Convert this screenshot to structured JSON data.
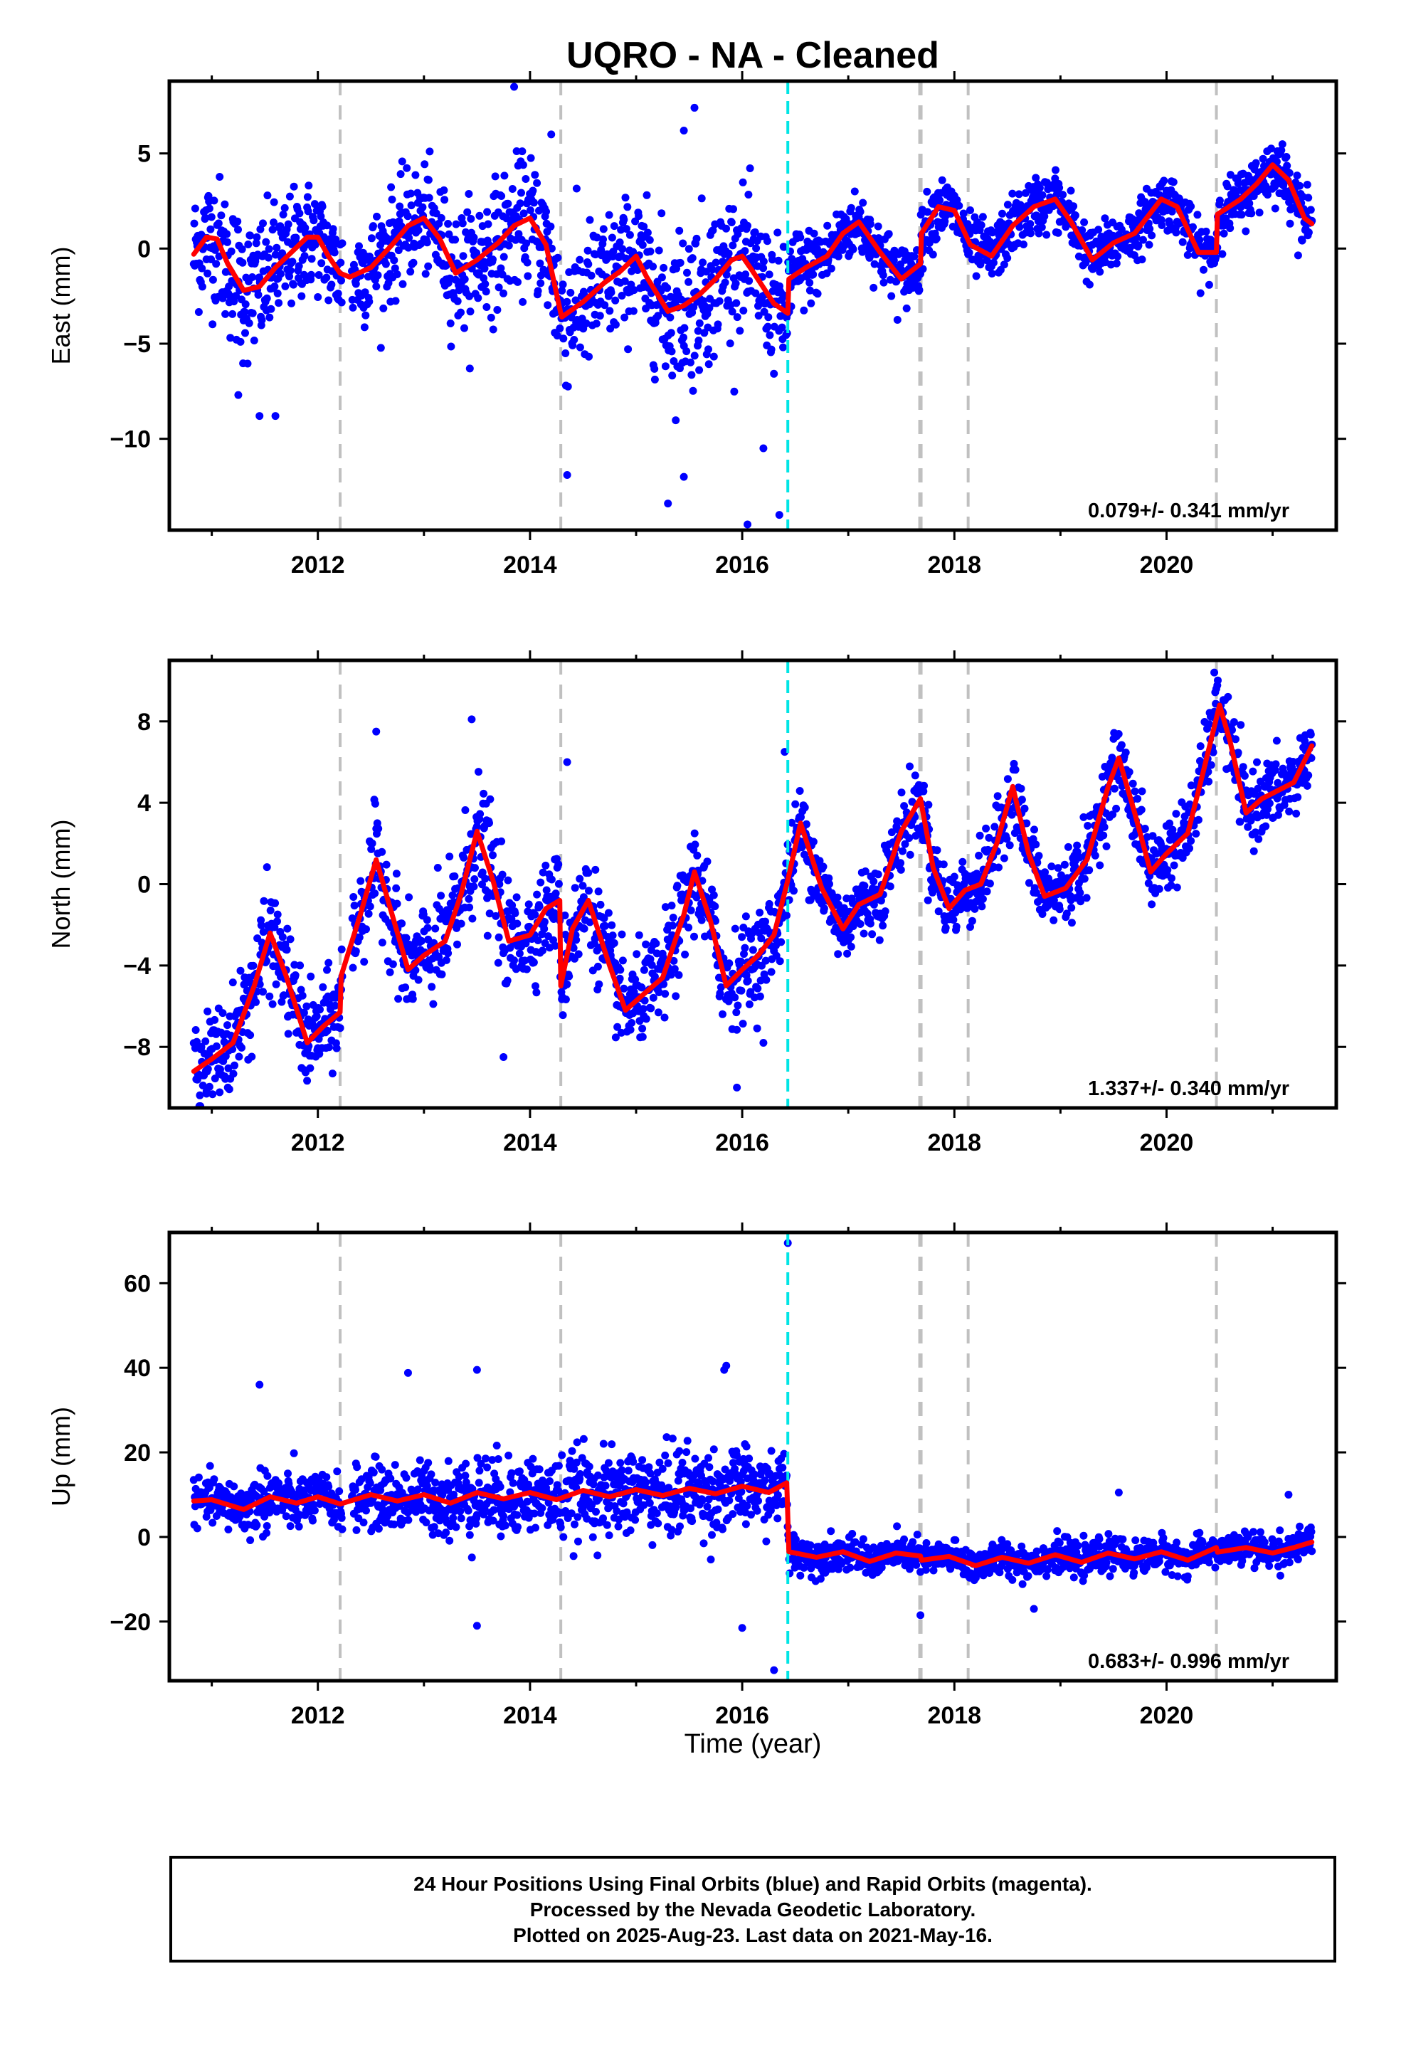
{
  "title": "UQRO  - NA - Cleaned",
  "colors": {
    "final_orbits": "#0000ff",
    "model": "#ff0000",
    "equipment_change": "#c0c0c0",
    "earthquake": "#00e5e5"
  },
  "x_axis": {
    "label": "Time (year)",
    "range": [
      2010.6,
      2021.6
    ],
    "ticks": [
      "2012",
      "2014",
      "2016",
      "2018",
      "2020"
    ]
  },
  "footer": {
    "line1": "24 Hour Positions Using Final Orbits (blue) and Rapid Orbits (magenta).",
    "line2": "Processed by the Nevada Geodetic Laboratory.",
    "line3": "Plotted on 2025-Aug-23. Last data on 2021-May-16."
  },
  "chart_data": [
    {
      "type": "scatter",
      "panel": "east",
      "ylabel": "East (mm)",
      "ylim": [
        -14.8,
        8.8
      ],
      "yticks": [
        5,
        0,
        -5,
        -10
      ],
      "ytick_labels": [
        "5",
        "0",
        "−5",
        "−10"
      ],
      "rate_label": "0.079+/- 0.341 mm/yr",
      "vlines_gray": [
        2012.21,
        2014.29,
        2017.68,
        2018.13,
        2020.47
      ],
      "vline_cyan": 2016.43,
      "data_start": 2010.83,
      "data_end": 2021.37,
      "model_curve": {
        "x": [
          2010.83,
          2010.95,
          2011.05,
          2011.15,
          2011.3,
          2011.45,
          2011.6,
          2011.75,
          2011.9,
          2012.0,
          2012.1,
          2012.21,
          2012.3,
          2012.5,
          2012.7,
          2012.85,
          2013.0,
          2013.15,
          2013.3,
          2013.5,
          2013.7,
          2013.85,
          2014.0,
          2014.15,
          2014.29,
          2014.3,
          2014.5,
          2014.7,
          2014.85,
          2015.0,
          2015.1,
          2015.3,
          2015.45,
          2015.6,
          2015.75,
          2015.9,
          2016.0,
          2016.1,
          2016.3,
          2016.43,
          2016.44,
          2016.6,
          2016.8,
          2016.95,
          2017.1,
          2017.3,
          2017.5,
          2017.68,
          2017.69,
          2017.85,
          2018.0,
          2018.15,
          2018.35,
          2018.55,
          2018.75,
          2018.95,
          2019.1,
          2019.3,
          2019.5,
          2019.7,
          2019.95,
          2020.1,
          2020.3,
          2020.47,
          2020.48,
          2020.7,
          2020.85,
          2021.0,
          2021.15,
          2021.3,
          2021.37
        ],
        "y": [
          -0.3,
          0.6,
          0.5,
          -0.8,
          -2.2,
          -2.0,
          -1.0,
          -0.2,
          0.6,
          0.6,
          -0.4,
          -1.3,
          -1.5,
          -1.0,
          0.2,
          1.2,
          1.6,
          0.5,
          -1.3,
          -0.6,
          0.3,
          1.2,
          1.6,
          0.2,
          -3.4,
          -3.6,
          -2.8,
          -1.8,
          -1.2,
          -0.4,
          -1.5,
          -3.3,
          -3.0,
          -2.4,
          -1.6,
          -0.6,
          -0.4,
          -1.2,
          -2.9,
          -3.4,
          -1.6,
          -1.0,
          -0.4,
          0.8,
          1.4,
          -0.2,
          -1.6,
          -0.8,
          0.8,
          2.2,
          2.0,
          0.2,
          -0.4,
          1.2,
          2.2,
          2.6,
          1.4,
          -0.6,
          0.3,
          0.8,
          2.6,
          2.2,
          -0.2,
          -0.2,
          1.8,
          2.6,
          3.4,
          4.4,
          3.6,
          1.6,
          1.3
        ]
      },
      "scatter_bands": {
        "x": [
          2010.9,
          2011.3,
          2011.6,
          2012.0,
          2012.5,
          2013.0,
          2013.5,
          2014.0,
          2014.5,
          2015.0,
          2015.5,
          2016.0,
          2016.4,
          2016.6,
          2017.0,
          2017.5,
          2018.0,
          2018.5,
          2019.0,
          2019.5,
          2020.0,
          2020.5,
          2021.0,
          2021.35
        ],
        "spread": [
          3.0,
          3.5,
          3.0,
          2.5,
          2.5,
          2.5,
          3.0,
          3.0,
          3.5,
          3.0,
          4.0,
          3.0,
          3.0,
          1.8,
          1.5,
          1.5,
          1.4,
          1.4,
          1.4,
          1.3,
          1.3,
          1.3,
          1.4,
          1.3
        ]
      },
      "outliers": [
        [
          2011.25,
          -7.7
        ],
        [
          2011.45,
          -8.8
        ],
        [
          2011.6,
          -8.8
        ],
        [
          2013.85,
          8.5
        ],
        [
          2014.35,
          -11.9
        ],
        [
          2015.3,
          -13.4
        ],
        [
          2015.45,
          -12.0
        ],
        [
          2015.55,
          7.4
        ],
        [
          2016.05,
          -14.5
        ],
        [
          2016.35,
          -14.0
        ],
        [
          2016.2,
          -10.5
        ],
        [
          2014.2,
          6.0
        ],
        [
          2015.45,
          6.2
        ]
      ]
    },
    {
      "type": "scatter",
      "panel": "north",
      "ylabel": "North (mm)",
      "ylim": [
        -11.0,
        11.0
      ],
      "yticks": [
        8,
        4,
        0,
        -4,
        -8
      ],
      "ytick_labels": [
        "8",
        "4",
        "0",
        "−4",
        "−8"
      ],
      "rate_label": "1.337+/- 0.340 mm/yr",
      "vlines_gray": [
        2012.21,
        2014.29,
        2017.68,
        2018.13,
        2020.47
      ],
      "vline_cyan": 2016.43,
      "data_start": 2010.83,
      "data_end": 2021.37,
      "model_curve": {
        "x": [
          2010.83,
          2011.0,
          2011.2,
          2011.4,
          2011.55,
          2011.7,
          2011.9,
          2012.05,
          2012.21,
          2012.22,
          2012.4,
          2012.55,
          2012.7,
          2012.85,
          2013.0,
          2013.2,
          2013.35,
          2013.5,
          2013.65,
          2013.8,
          2014.0,
          2014.15,
          2014.28,
          2014.29,
          2014.4,
          2014.55,
          2014.75,
          2014.9,
          2015.05,
          2015.25,
          2015.45,
          2015.55,
          2015.7,
          2015.85,
          2016.0,
          2016.15,
          2016.3,
          2016.43,
          2016.55,
          2016.75,
          2016.95,
          2017.1,
          2017.3,
          2017.5,
          2017.68,
          2017.8,
          2017.95,
          2018.1,
          2018.25,
          2018.4,
          2018.55,
          2018.7,
          2018.85,
          2019.05,
          2019.25,
          2019.45,
          2019.55,
          2019.7,
          2019.85,
          2020.0,
          2020.2,
          2020.35,
          2020.5,
          2020.6,
          2020.75,
          2020.9,
          2021.05,
          2021.2,
          2021.37
        ],
        "y": [
          -9.2,
          -8.6,
          -7.8,
          -5.0,
          -2.4,
          -4.5,
          -7.8,
          -7.0,
          -6.3,
          -4.5,
          -1.5,
          1.2,
          -1.5,
          -4.2,
          -3.5,
          -2.8,
          -0.5,
          2.6,
          0.2,
          -2.8,
          -2.5,
          -1.2,
          -0.8,
          -5.0,
          -2.2,
          -0.8,
          -4.0,
          -6.2,
          -5.5,
          -4.6,
          -1.5,
          0.6,
          -1.8,
          -5.0,
          -4.2,
          -3.5,
          -2.5,
          0.2,
          3.0,
          -0.2,
          -2.2,
          -1.0,
          -0.5,
          2.6,
          4.2,
          0.8,
          -1.2,
          -0.3,
          0.0,
          2.0,
          4.8,
          1.5,
          -0.6,
          -0.2,
          1.2,
          4.8,
          6.2,
          3.5,
          0.6,
          1.5,
          2.5,
          5.6,
          8.8,
          7.0,
          3.5,
          4.2,
          4.6,
          5.0,
          6.8
        ]
      },
      "scatter_bands": {
        "x": [
          2010.9,
          2011.5,
          2012.0,
          2012.5,
          2013.0,
          2013.5,
          2014.0,
          2014.5,
          2015.0,
          2015.5,
          2016.0,
          2016.5,
          2017.0,
          2017.5,
          2018.0,
          2018.5,
          2019.0,
          2019.5,
          2020.0,
          2020.5,
          2021.0,
          2021.35
        ],
        "spread": [
          2.0,
          2.5,
          2.0,
          2.2,
          2.2,
          2.8,
          2.0,
          2.2,
          2.0,
          2.2,
          2.0,
          1.8,
          1.6,
          1.6,
          1.6,
          1.6,
          1.6,
          1.6,
          1.6,
          1.6,
          1.6,
          1.6
        ]
      },
      "outliers": [
        [
          2010.95,
          -10.3
        ],
        [
          2013.45,
          8.1
        ],
        [
          2013.75,
          -8.5
        ],
        [
          2012.55,
          7.5
        ],
        [
          2014.35,
          6.0
        ],
        [
          2015.95,
          -10.0
        ],
        [
          2016.4,
          6.5
        ],
        [
          2016.2,
          -7.8
        ],
        [
          2020.45,
          10.4
        ]
      ]
    },
    {
      "type": "scatter",
      "panel": "up",
      "ylabel": "Up (mm)",
      "ylim": [
        -34,
        72
      ],
      "yticks": [
        60,
        40,
        20,
        0,
        -20
      ],
      "ytick_labels": [
        "60",
        "40",
        "20",
        "0",
        "−20"
      ],
      "rate_label": "0.683+/- 0.996 mm/yr",
      "vlines_gray": [
        2012.21,
        2014.29,
        2017.68,
        2018.13,
        2020.47
      ],
      "vline_cyan": 2016.43,
      "data_start": 2010.83,
      "data_end": 2021.37,
      "model_curve": {
        "x": [
          2010.83,
          2011.0,
          2011.3,
          2011.55,
          2011.8,
          2012.0,
          2012.21,
          2012.5,
          2012.75,
          2013.0,
          2013.25,
          2013.5,
          2013.75,
          2014.0,
          2014.25,
          2014.5,
          2014.75,
          2015.0,
          2015.25,
          2015.5,
          2015.75,
          2016.0,
          2016.25,
          2016.42,
          2016.44,
          2016.7,
          2016.95,
          2017.2,
          2017.45,
          2017.68,
          2017.69,
          2017.95,
          2018.2,
          2018.45,
          2018.7,
          2018.95,
          2019.2,
          2019.45,
          2019.7,
          2019.95,
          2020.2,
          2020.47,
          2020.48,
          2020.75,
          2021.0,
          2021.2,
          2021.37
        ],
        "y": [
          8.5,
          8.8,
          6.5,
          9.5,
          8.0,
          9.5,
          7.8,
          10.0,
          8.5,
          10.0,
          8.0,
          10.5,
          9.0,
          10.5,
          8.8,
          11.0,
          9.5,
          11.2,
          9.8,
          11.5,
          10.2,
          12.0,
          10.5,
          12.8,
          -3.5,
          -4.8,
          -3.5,
          -5.8,
          -3.8,
          -4.5,
          -5.5,
          -4.6,
          -6.8,
          -4.8,
          -6.2,
          -4.2,
          -6.0,
          -3.8,
          -5.2,
          -3.5,
          -5.5,
          -2.5,
          -3.6,
          -2.5,
          -3.8,
          -2.5,
          -1.2
        ]
      },
      "scatter_bands": {
        "x": [
          2010.9,
          2011.5,
          2012.0,
          2012.5,
          2013.0,
          2013.5,
          2014.0,
          2014.5,
          2015.0,
          2015.5,
          2016.0,
          2016.4,
          2016.5,
          2017.0,
          2017.5,
          2018.0,
          2018.5,
          2019.0,
          2019.5,
          2020.0,
          2020.5,
          2021.0,
          2021.35
        ],
        "spread": [
          4.0,
          7.0,
          5.0,
          7.0,
          7.0,
          9.0,
          8.0,
          9.0,
          9.0,
          10.0,
          8.0,
          7.0,
          4.0,
          3.5,
          3.5,
          3.5,
          3.5,
          3.5,
          3.5,
          3.5,
          3.5,
          3.5,
          3.5
        ]
      },
      "outliers": [
        [
          2016.43,
          69.5
        ],
        [
          2015.85,
          40.5
        ],
        [
          2015.83,
          39.5
        ],
        [
          2013.5,
          39.5
        ],
        [
          2011.45,
          36.0
        ],
        [
          2012.85,
          38.8
        ],
        [
          2013.5,
          -21.0
        ],
        [
          2016.3,
          -31.5
        ],
        [
          2016.0,
          -21.5
        ],
        [
          2017.68,
          -18.5
        ],
        [
          2018.75,
          -17.0
        ],
        [
          2019.55,
          10.5
        ],
        [
          2021.15,
          10.0
        ]
      ]
    }
  ]
}
